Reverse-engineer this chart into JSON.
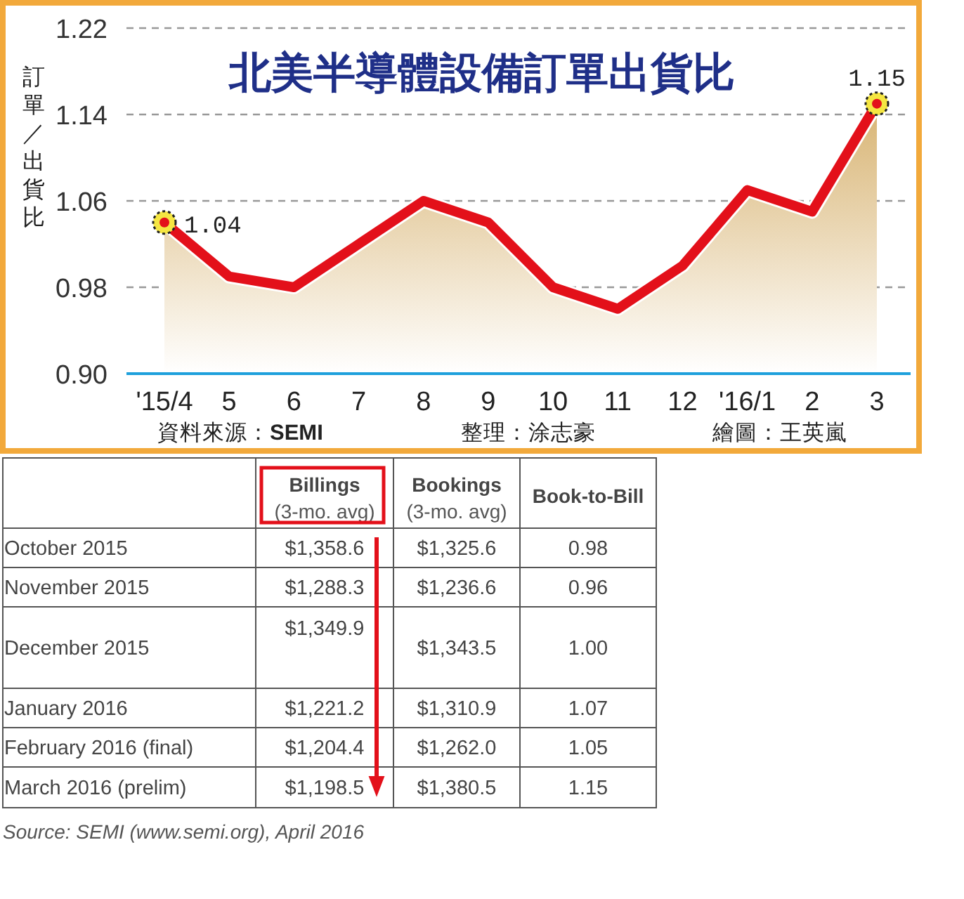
{
  "chart_data": [
    {
      "type": "area",
      "title": "北美半導體設備訂單出貨比",
      "ylabel": "訂單／出貨比",
      "categories": [
        "'15/4",
        "5",
        "6",
        "7",
        "8",
        "9",
        "10",
        "11",
        "12",
        "'16/1",
        "2",
        "3"
      ],
      "series": [
        {
          "color": "#e3101a",
          "values": [
            1.04,
            0.99,
            0.98,
            1.02,
            1.06,
            1.04,
            0.98,
            0.96,
            1.0,
            1.07,
            1.05,
            1.15
          ],
          "value_labels": [
            "1.04",
            null,
            null,
            null,
            null,
            null,
            null,
            null,
            null,
            null,
            null,
            "1.15"
          ]
        }
      ],
      "ylim": [
        0.9,
        1.22
      ],
      "yticks": [
        {
          "value": 0.9,
          "label": "0.90"
        },
        {
          "value": 0.98,
          "label": "0.98"
        },
        {
          "value": 1.06,
          "label": "1.06"
        },
        {
          "value": 1.14,
          "label": "1.14"
        },
        {
          "value": 1.22,
          "label": "1.22"
        }
      ],
      "grid": "y",
      "annotations": [
        "資料來源：**SEMI**",
        "整理：涂志豪",
        "繪圖：王英嵐"
      ]
    },
    {
      "type": "other",
      "categories": [
        "October 2015",
        "November 2015",
        "December 2015",
        "January 2016",
        "February 2016 (final)",
        "March 2016 (prelim)"
      ],
      "series": [
        {
          "name": "**Billings** (3-mo. avg)",
          "values": [
            1358.6,
            1288.3,
            1349.9,
            1221.2,
            1204.4,
            1198.5
          ],
          "value_labels": [
            "$1,358.6",
            "$1,288.3",
            "$1,349.9",
            "$1,221.2",
            "$1,204.4",
            "$1,198.5"
          ]
        },
        {
          "name": "**Bookings** (3-mo. avg)",
          "values": [
            1325.6,
            1236.6,
            1343.5,
            1310.9,
            1262.0,
            1380.5
          ],
          "value_labels": [
            "$1,325.6",
            "$1,236.6",
            "$1,343.5",
            "$1,310.9",
            "$1,262.0",
            "$1,380.5"
          ]
        },
        {
          "name": "**Book-to-Bill**",
          "values": [
            0.98,
            0.96,
            1.0,
            1.07,
            1.05,
            1.15
          ],
          "value_labels": [
            "0.98",
            "0.96",
            "1.00",
            "1.07",
            "1.05",
            "1.15"
          ]
        }
      ],
      "annotations": [
        "Source: SEMI (www.semi.org), April 2016"
      ]
    }
  ]
}
